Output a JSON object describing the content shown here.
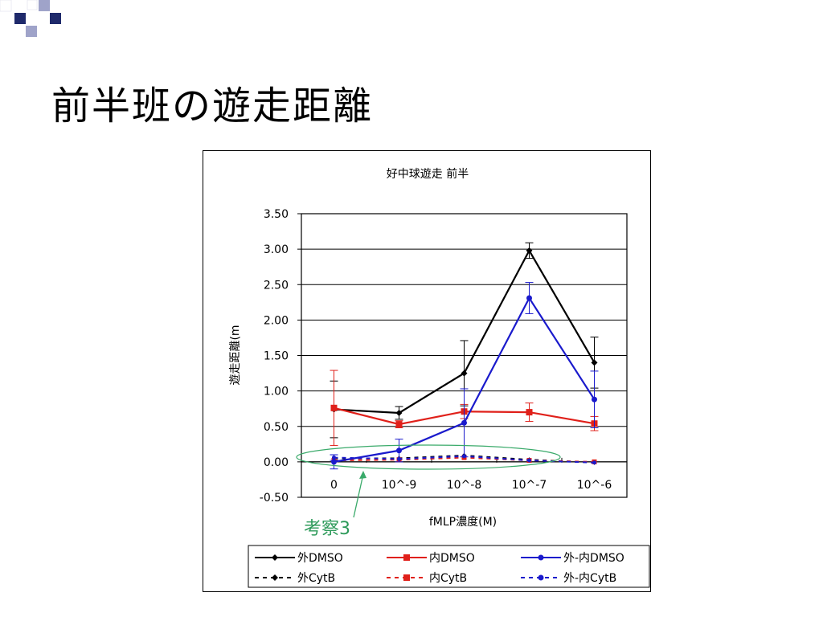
{
  "slide": {
    "title": "前半班の遊走距離",
    "annotation": "考察3"
  },
  "colors": {
    "deco_navy": "#1f2a6b",
    "deco_light": "#9fa3c9",
    "black": "#000000",
    "red": "#e0201a",
    "blue": "#1a1acc",
    "ellipse": "#3aaa6a",
    "annotation": "#2e9a5a"
  },
  "chart_data": {
    "type": "line",
    "title": "好中球遊走  前半",
    "xlabel": "fMLP濃度(M)",
    "ylabel": "遊走距離(m",
    "categories": [
      "0",
      "10^-9",
      "10^-8",
      "10^-7",
      "10^-6"
    ],
    "ylim": [
      -0.5,
      3.5
    ],
    "yticks": [
      "3.50",
      "3.00",
      "2.50",
      "2.00",
      "1.50",
      "1.00",
      "0.50",
      "0.00",
      "-0.50"
    ],
    "ytick_values": [
      3.5,
      3.0,
      2.5,
      2.0,
      1.5,
      1.0,
      0.5,
      0.0,
      -0.5
    ],
    "grid": true,
    "legend_position": "bottom",
    "series": [
      {
        "name": "外DMSO",
        "color": "black",
        "marker": "diamond",
        "dashed": false,
        "values": [
          0.74,
          0.69,
          1.25,
          2.98,
          1.4
        ],
        "errors": [
          0.4,
          0.09,
          0.46,
          0.11,
          0.36
        ]
      },
      {
        "name": "内DMSO",
        "color": "red",
        "marker": "square",
        "dashed": false,
        "values": [
          0.76,
          0.53,
          0.71,
          0.7,
          0.54
        ],
        "errors": [
          0.53,
          0.05,
          0.1,
          0.13,
          0.1
        ]
      },
      {
        "name": "外-内DMSO",
        "color": "blue",
        "marker": "circle",
        "dashed": false,
        "values": [
          0.0,
          0.16,
          0.55,
          2.31,
          0.88
        ],
        "errors": [
          0.1,
          0.16,
          0.48,
          0.22,
          0.4
        ]
      },
      {
        "name": "外CytB",
        "color": "black",
        "marker": "diamond",
        "dashed": true,
        "values": [
          0.05,
          0.05,
          0.09,
          0.03,
          -0.01
        ],
        "errors": [
          0.0,
          0.0,
          0.0,
          0.0,
          0.0
        ]
      },
      {
        "name": "内CytB",
        "color": "red",
        "marker": "square",
        "dashed": true,
        "values": [
          0.02,
          0.03,
          0.06,
          0.02,
          0.0
        ],
        "errors": [
          0.0,
          0.0,
          0.0,
          0.0,
          0.0
        ]
      },
      {
        "name": "外-内CytB",
        "color": "blue",
        "marker": "circle",
        "dashed": true,
        "values": [
          0.06,
          0.04,
          0.08,
          0.02,
          -0.01
        ],
        "errors": [
          0.04,
          0.0,
          0.0,
          0.0,
          0.0
        ]
      }
    ]
  }
}
